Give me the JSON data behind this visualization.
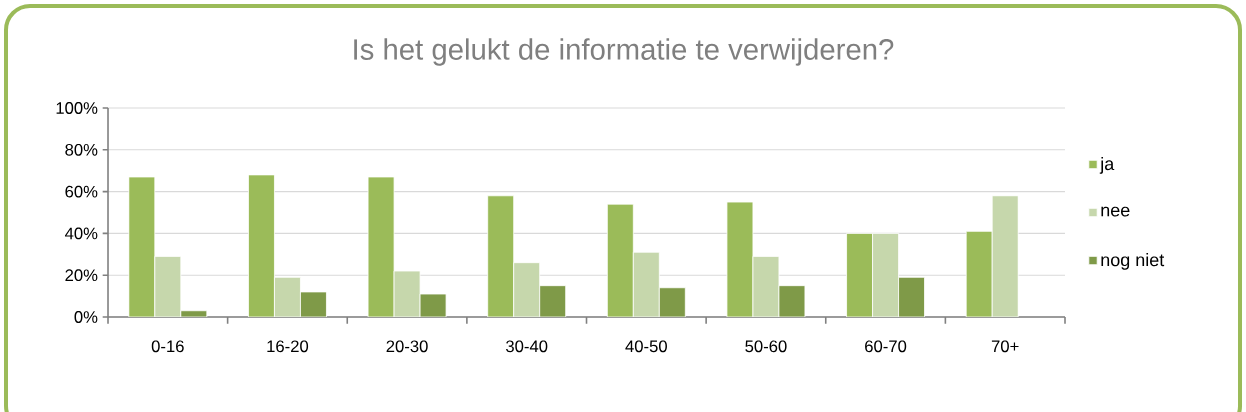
{
  "chart_data": {
    "type": "bar",
    "title": "Is het gelukt de informatie te verwijderen?",
    "categories": [
      "0-16",
      "16-20",
      "20-30",
      "30-40",
      "40-50",
      "50-60",
      "60-70",
      "70+"
    ],
    "series": [
      {
        "name": "ja",
        "color": "#9bbb59",
        "values": [
          67,
          68,
          67,
          58,
          54,
          55,
          40,
          41
        ]
      },
      {
        "name": "nee",
        "color": "#c6d7ac",
        "values": [
          29,
          19,
          22,
          26,
          31,
          29,
          40,
          58
        ]
      },
      {
        "name": "nog niet",
        "color": "#7f9a48",
        "values": [
          3,
          12,
          11,
          15,
          14,
          15,
          19,
          null
        ]
      }
    ],
    "ylim": [
      0,
      100
    ],
    "yticks": [
      {
        "value": 0,
        "label": "0%"
      },
      {
        "value": 20,
        "label": "20%"
      },
      {
        "value": 40,
        "label": "40%"
      },
      {
        "value": 60,
        "label": "60%"
      },
      {
        "value": 80,
        "label": "80%"
      },
      {
        "value": 100,
        "label": "100%"
      }
    ],
    "grid": "y",
    "legend": "right"
  }
}
